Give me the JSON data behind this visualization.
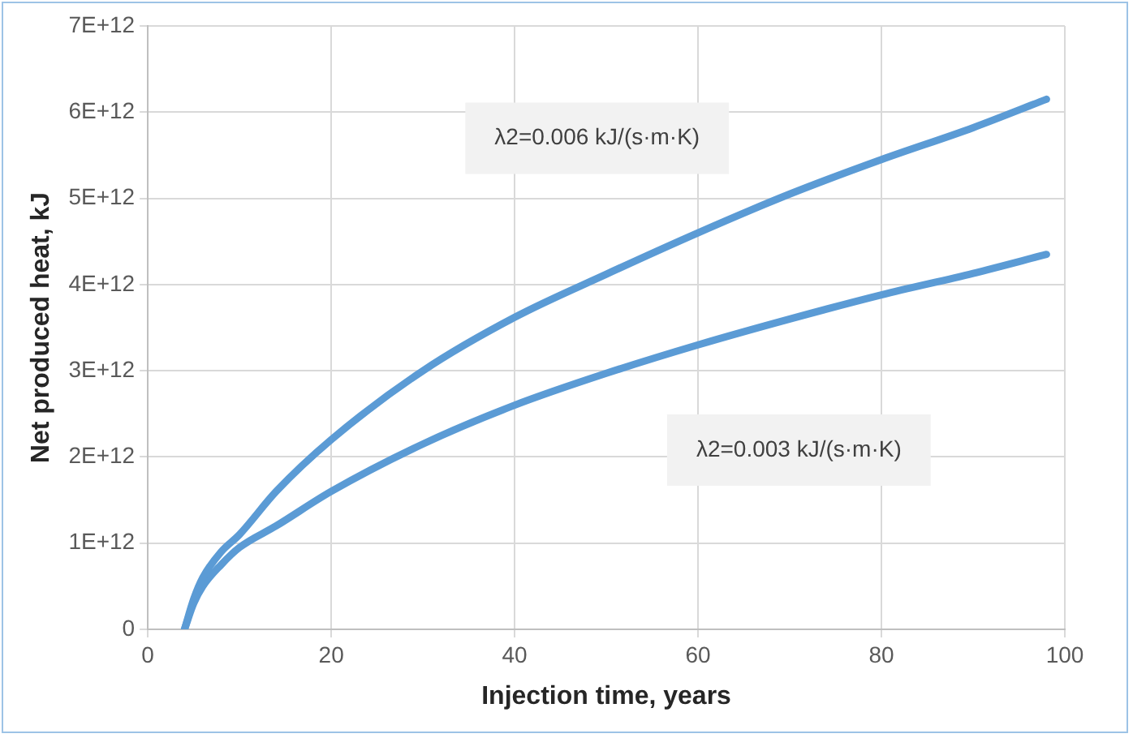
{
  "chart_data": {
    "type": "line",
    "xlabel": "Injection time, years",
    "ylabel": "Net produced heat, kJ",
    "series": [
      {
        "color": "#5b9bd5",
        "x": [
          4,
          5,
          6,
          8,
          10,
          14,
          20,
          30,
          40,
          50,
          60,
          70,
          80,
          90,
          98
        ],
        "values": [
          0,
          350000000000.0,
          600000000000.0,
          900000000000.0,
          1100000000000.0,
          1600000000000.0,
          2200000000000.0,
          3000000000000.0,
          3620000000000.0,
          4120000000000.0,
          4600000000000.0,
          5050000000000.0,
          5450000000000.0,
          5820000000000.0,
          6150000000000.0
        ]
      },
      {
        "color": "#5b9bd5",
        "x": [
          4,
          5,
          6,
          8,
          10,
          14,
          20,
          30,
          40,
          50,
          60,
          70,
          80,
          90,
          98
        ],
        "values": [
          0,
          300000000000.0,
          500000000000.0,
          750000000000.0,
          950000000000.0,
          1200000000000.0,
          1600000000000.0,
          2150000000000.0,
          2600000000000.0,
          2970000000000.0,
          3300000000000.0,
          3600000000000.0,
          3880000000000.0,
          4130000000000.0,
          4350000000000.0
        ]
      }
    ],
    "xlim": [
      0,
      100
    ],
    "xticks": [
      0,
      20,
      40,
      60,
      80,
      100
    ],
    "ylim": [
      0,
      7000000000000.0
    ],
    "yticks": [
      0,
      {
        "value": 1000000000000.0,
        "label": "1E+12"
      },
      {
        "value": 2000000000000.0,
        "label": "2E+12"
      },
      {
        "value": 3000000000000.0,
        "label": "3E+12"
      },
      {
        "value": 4000000000000.0,
        "label": "4E+12"
      },
      {
        "value": 5000000000000.0,
        "label": "5E+12"
      },
      {
        "value": 6000000000000.0,
        "label": "6E+12"
      },
      {
        "value": 7000000000000.0,
        "label": "7E+12"
      }
    ],
    "annotations": [
      "λ2=0.006 kJ/(s·m·K)",
      "λ2=0.003 kJ/(s·m·K)"
    ],
    "grid": true,
    "legend": false,
    "marker": "none",
    "line_style": "solid"
  }
}
